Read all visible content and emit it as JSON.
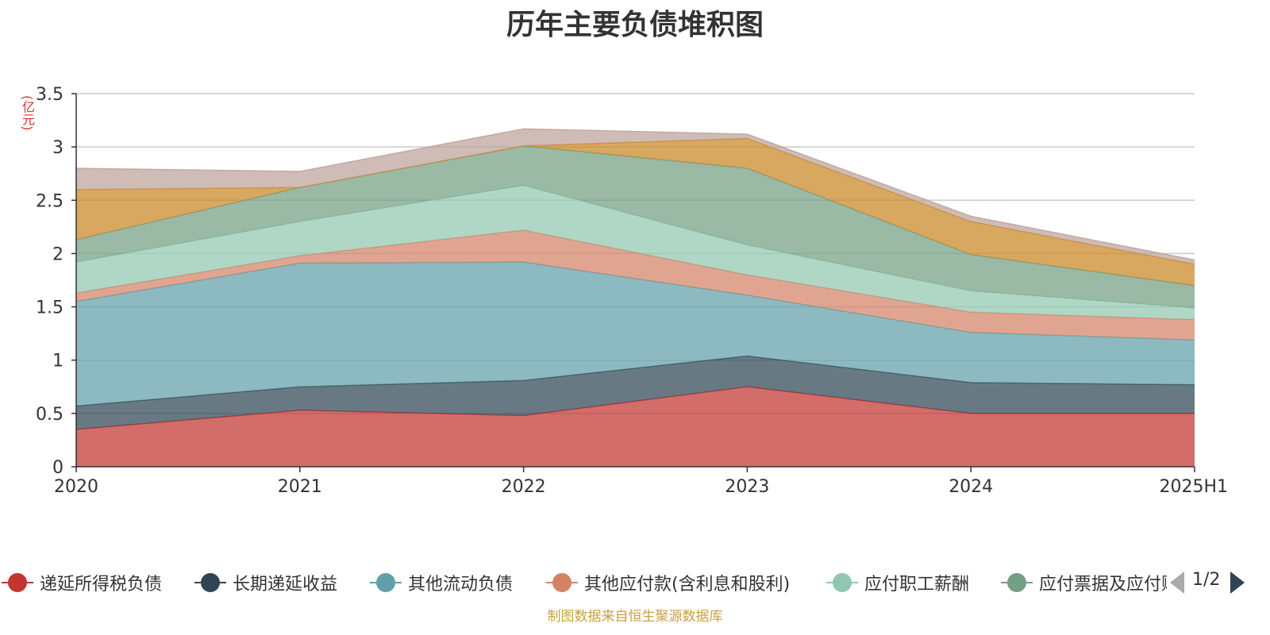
{
  "chart_data": {
    "type": "area",
    "stacked": true,
    "title": "历年主要负债堆积图",
    "unit_label": "(亿元)",
    "categories": [
      "2020",
      "2021",
      "2022",
      "2023",
      "2024",
      "2025H1"
    ],
    "y_ticks": [
      "0",
      "0.5",
      "1",
      "1.5",
      "2",
      "2.5",
      "3",
      "3.5"
    ],
    "ylim": [
      0,
      3.5
    ],
    "grid": true,
    "legend_position": "bottom",
    "series": [
      {
        "name": "递延所得税负债",
        "color": "#c23531",
        "values": [
          0.35,
          0.53,
          0.48,
          0.75,
          0.5,
          0.5
        ]
      },
      {
        "name": "长期递延收益",
        "color": "#2f4554",
        "values": [
          0.22,
          0.22,
          0.33,
          0.29,
          0.29,
          0.27
        ]
      },
      {
        "name": "其他流动负债",
        "color": "#61a0a8",
        "values": [
          0.98,
          1.16,
          1.11,
          0.57,
          0.47,
          0.42
        ]
      },
      {
        "name": "其他应付款(含利息和股利)",
        "color": "#d48265",
        "values": [
          0.08,
          0.07,
          0.3,
          0.19,
          0.19,
          0.19
        ]
      },
      {
        "name": "应付职工薪酬",
        "color": "#91c7ae",
        "values": [
          0.29,
          0.32,
          0.42,
          0.28,
          0.2,
          0.11
        ]
      },
      {
        "name": "应付票据及应付账款",
        "color": "#749f83",
        "values": [
          0.21,
          0.32,
          0.37,
          0.72,
          0.34,
          0.21
        ]
      },
      {
        "name": "",
        "color": "#ca8622",
        "values": [
          0.47,
          0.0,
          0.0,
          0.28,
          0.31,
          0.2
        ]
      },
      {
        "name": "",
        "color": "#bda29a",
        "values": [
          0.2,
          0.15,
          0.16,
          0.04,
          0.05,
          0.04
        ]
      }
    ]
  },
  "legend": {
    "items": [
      {
        "label": "递延所得税负债",
        "color": "#c23531"
      },
      {
        "label": "长期递延收益",
        "color": "#2f4554"
      },
      {
        "label": "其他流动负债",
        "color": "#61a0a8"
      },
      {
        "label": "其他应付款(含利息和股利)",
        "color": "#d48265"
      },
      {
        "label": "应付职工薪酬",
        "color": "#91c7ae"
      },
      {
        "label": "应付票据及应付账款",
        "color": "#749f83"
      }
    ],
    "page_indicator": "1/2"
  },
  "source_note": "制图数据来自恒生聚源数据库"
}
